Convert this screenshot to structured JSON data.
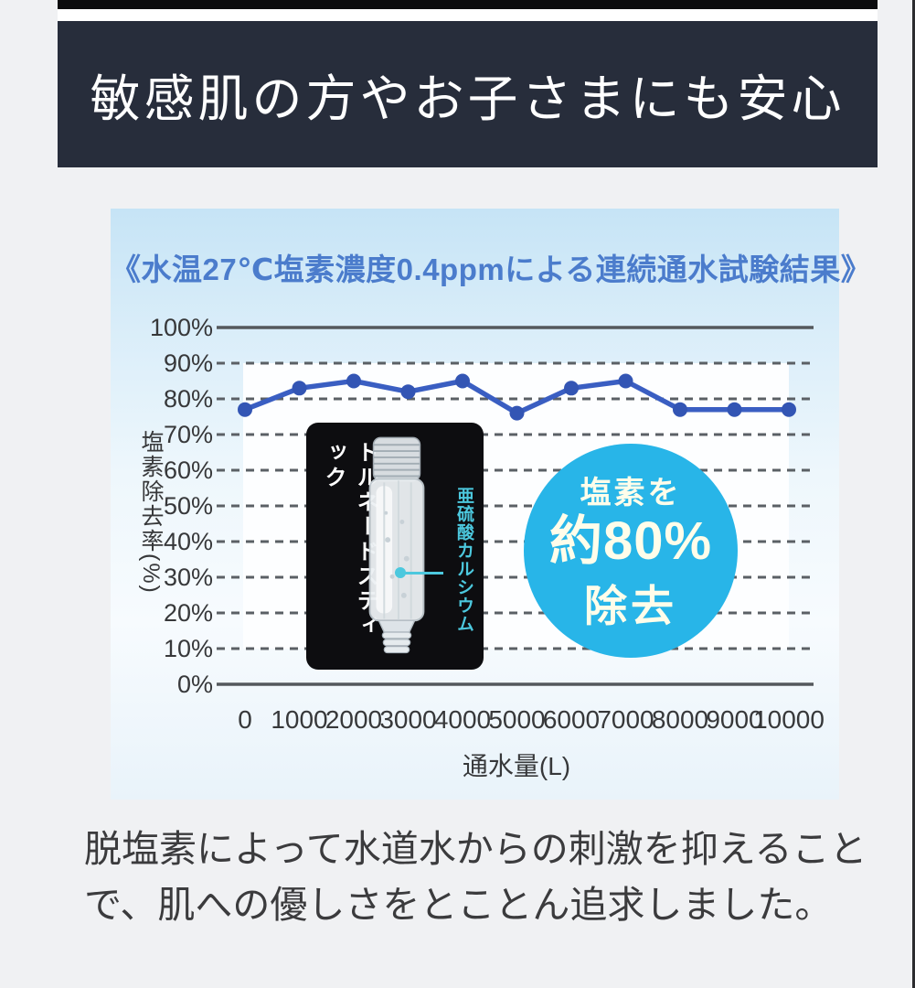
{
  "page": {
    "background_color": "#f0f1f3",
    "right_edge_color": "#2c2c2f"
  },
  "banner": {
    "title": "敏感肌の方やお子さまにも安心",
    "bg_color": "#272d3b",
    "text_color": "#ffffff",
    "top_strip_color": "#0b0b0d"
  },
  "chart_panel": {
    "bg_top_color": "#c6e4f6",
    "bg_bottom_color": "#e9f3fa",
    "title_color": "#4b7ccc"
  },
  "chart_data": {
    "type": "line",
    "title": "《水温27℃塩素濃度0.4ppmによる連続通水試験結果》",
    "x": [
      0,
      1000,
      2000,
      3000,
      4000,
      5000,
      6000,
      7000,
      8000,
      9000,
      10000
    ],
    "x_labels": [
      "0",
      "1000",
      "2000",
      "3000",
      "4000",
      "5000",
      "6000",
      "7000",
      "8000",
      "9000",
      "10000"
    ],
    "values": [
      77,
      83,
      85,
      82,
      85,
      76,
      83,
      85,
      77,
      77,
      77
    ],
    "series_name": "塩素除去率",
    "xlabel": "通水量(L)",
    "ylabel": "塩素除去率(%)",
    "ylim": [
      0,
      100
    ],
    "ytick_step": 10,
    "ytick_labels": [
      "100%",
      "90%",
      "80%",
      "70%",
      "60%",
      "50%",
      "40%",
      "30%",
      "20%",
      "10%",
      "0%"
    ],
    "grid": "dashed horizontal, solid top and bottom border lines",
    "legend": "none",
    "line_color": "#3a5ec2",
    "marker_color": "#3355b4",
    "grid_color": "#5b6065",
    "axis_line_color": "#54585c",
    "tick_text_color": "#37383a",
    "plot_bg_color": "#fdfeff"
  },
  "product_box": {
    "product_name": "トルネードスティック",
    "ingredient_label": "亜硫酸カルシウム",
    "ingredient_label_color": "#4cc8de",
    "bg_color": "#0d0d10"
  },
  "badge": {
    "line1": "塩素を",
    "line2": "約80%",
    "line3": "除去",
    "bg_color": "#28b5e8",
    "text_color": "#fffdea"
  },
  "footer": {
    "line1": "脱塩素によって水道水からの刺激を抑えること",
    "line2": "で、肌への優しさをとことん追求しました。",
    "text_color": "#3b3b3d"
  }
}
